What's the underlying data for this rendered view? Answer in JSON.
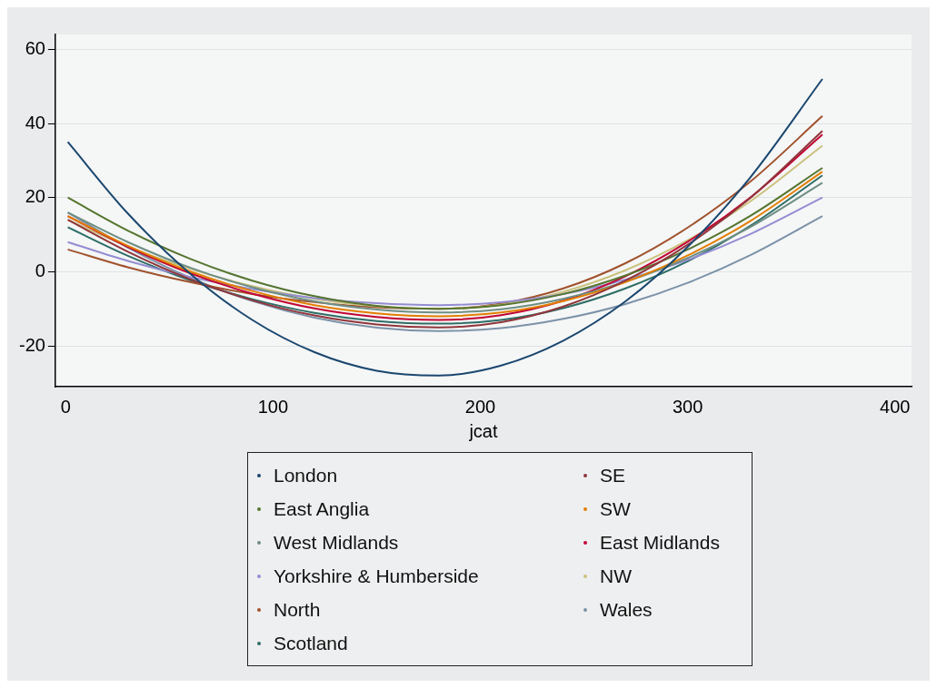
{
  "chart_data": {
    "type": "line",
    "xlabel": "jcat",
    "x": [
      1,
      30,
      60,
      90,
      120,
      150,
      180,
      210,
      240,
      270,
      300,
      330,
      365
    ],
    "series": [
      {
        "name": "London",
        "color": "#1a476f",
        "values": [
          35,
          15.7,
          -0.5,
          -13,
          -21.7,
          -26.7,
          -28,
          -25.3,
          -18.6,
          -8,
          6.7,
          25.3,
          52
        ]
      },
      {
        "name": "SE",
        "color": "#90353b",
        "values": [
          14,
          5.4,
          -2.0,
          -7.7,
          -11.8,
          -14.2,
          -15,
          -13.6,
          -9.4,
          -2.4,
          7.3,
          19.8,
          38
        ]
      },
      {
        "name": "East Anglia",
        "color": "#55752f",
        "values": [
          20,
          11.1,
          3.5,
          -2.4,
          -6.6,
          -9.2,
          -10,
          -9.0,
          -6.0,
          -1.0,
          6.0,
          15.0,
          28
        ]
      },
      {
        "name": "SW",
        "color": "#e37e00",
        "values": [
          15,
          7.0,
          0.1,
          -5.2,
          -9.0,
          -11.2,
          -12,
          -11.0,
          -7.9,
          -2.8,
          4.4,
          13.6,
          27
        ]
      },
      {
        "name": "West Midlands",
        "color": "#6e8e84",
        "values": [
          16,
          8.0,
          1.1,
          -4.2,
          -8.0,
          -10.2,
          -11,
          -10.1,
          -7.3,
          -2.7,
          3.7,
          12.0,
          24
        ]
      },
      {
        "name": "East Midlands",
        "color": "#c10534",
        "values": [
          15,
          6.7,
          -0.4,
          -5.9,
          -9.9,
          -12.2,
          -13,
          -11.7,
          -7.8,
          -1.2,
          8.1,
          19.9,
          37
        ]
      },
      {
        "name": "Yorkshire & Humberside",
        "color": "#938dd2",
        "values": [
          8,
          2.9,
          -1.4,
          -4.7,
          -7.1,
          -8.5,
          -9,
          -8.2,
          -6.0,
          -2.1,
          3.2,
          10.1,
          20
        ]
      },
      {
        "name": "NW",
        "color": "#cac27e",
        "values": [
          14,
          6.8,
          0.8,
          -3.9,
          -7.3,
          -9.3,
          -10,
          -8.9,
          -5.4,
          0.4,
          8.5,
          18.9,
          34
        ]
      },
      {
        "name": "North",
        "color": "#a0522d",
        "values": [
          6,
          1.2,
          -2.8,
          -6.0,
          -8.2,
          -9.6,
          -10,
          -8.6,
          -4.5,
          2.3,
          11.9,
          24.2,
          42
        ]
      },
      {
        "name": "Wales",
        "color": "#7b92a8",
        "values": [
          16,
          6.5,
          -1.6,
          -7.9,
          -12.4,
          -15.1,
          -16,
          -15.2,
          -12.7,
          -8.7,
          -3.0,
          4.4,
          15
        ]
      },
      {
        "name": "Scotland",
        "color": "#2d6d66",
        "values": [
          12,
          4.3,
          -2.3,
          -7.4,
          -11.1,
          -13.3,
          -14,
          -13.0,
          -9.8,
          -4.5,
          2.8,
          12.3,
          26
        ]
      }
    ],
    "xlim": [
      -5,
      408
    ],
    "xticks": [
      0,
      100,
      200,
      300,
      400
    ],
    "ylim": [
      -31,
      64
    ],
    "yticks": [
      -20,
      0,
      20,
      40,
      60
    ],
    "grid": "y",
    "legend": "bottom",
    "marker": "none",
    "line_style": "solid"
  }
}
